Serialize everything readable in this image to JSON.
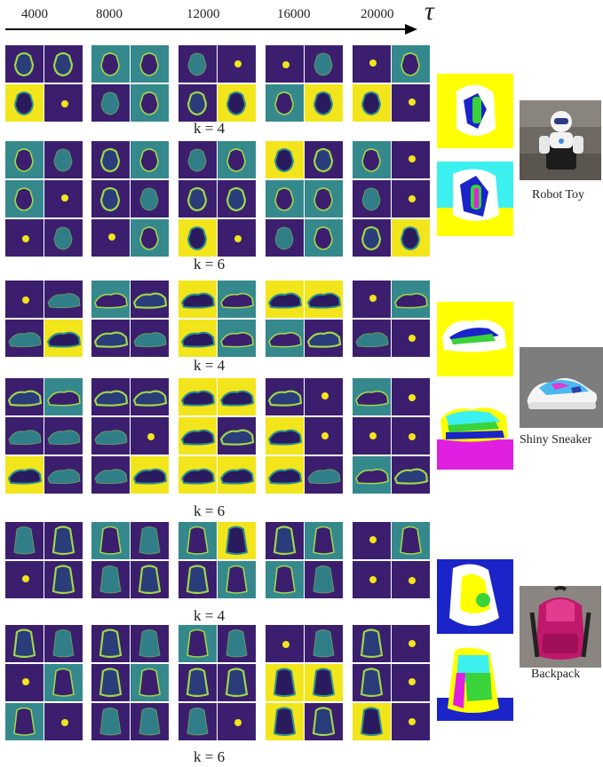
{
  "axis": {
    "ticks": [
      "4000",
      "8000",
      "12000",
      "16000",
      "20000"
    ],
    "symbol": "τ"
  },
  "groups": [
    {
      "object": "Robot Toy",
      "shape": "robot",
      "seg_colors_k4": [
        "#ffff00",
        "#ffffff",
        "#1a24c8",
        "#3ad33a"
      ],
      "seg_colors_k6": [
        "#ffff00",
        "#3cf0f0",
        "#ffffff",
        "#1a24c8",
        "#3ad33a",
        "#e020e0"
      ],
      "blocks": [
        {
          "k_label": "k = 4",
          "rows": 2
        },
        {
          "k_label": "k = 6",
          "rows": 3
        }
      ]
    },
    {
      "object": "Shiny Sneaker",
      "shape": "shoe",
      "seg_colors_k4": [
        "#ffff00",
        "#ffffff",
        "#1a24c8",
        "#3ad33a"
      ],
      "seg_colors_k6": [
        "#ffffff",
        "#ffff00",
        "#3cf0f0",
        "#3ad33a",
        "#1a24c8",
        "#e020e0"
      ],
      "blocks": [
        {
          "k_label": "k = 4",
          "rows": 2
        },
        {
          "k_label": "k = 6",
          "rows": 3
        }
      ]
    },
    {
      "object": "Backpack",
      "shape": "bag",
      "seg_colors_k4": [
        "#1a24c8",
        "#ffffff",
        "#ffff00",
        "#3ad33a"
      ],
      "seg_colors_k6": [
        "#ffffff",
        "#ffff00",
        "#3cf0f0",
        "#e020e0",
        "#3ad33a",
        "#1a24c8"
      ],
      "blocks": [
        {
          "k_label": "k = 4",
          "rows": 2
        },
        {
          "k_label": "k = 6",
          "rows": 3
        }
      ]
    }
  ]
}
